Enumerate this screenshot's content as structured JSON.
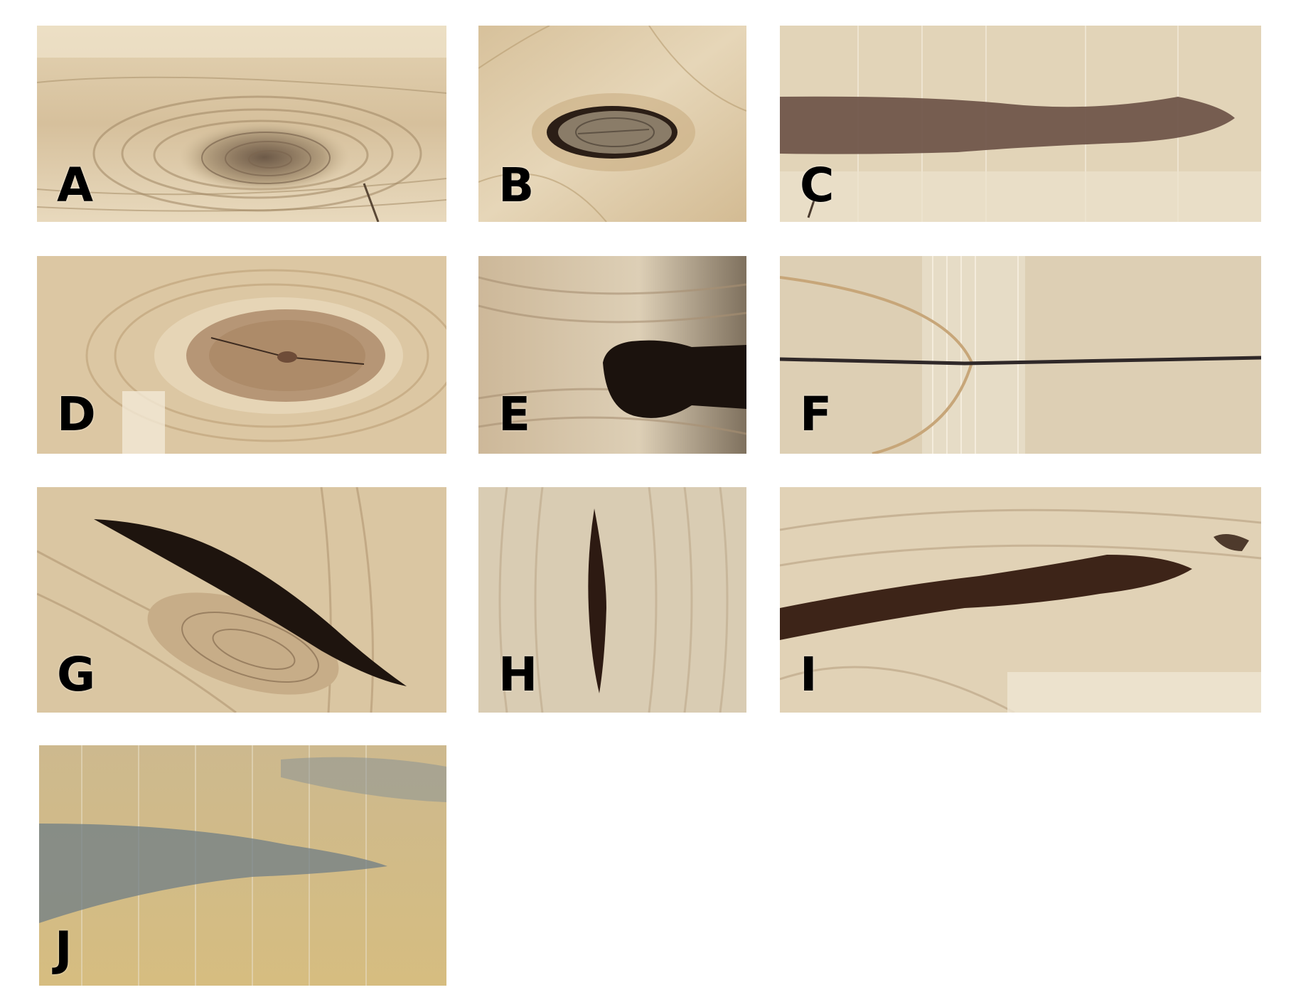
{
  "panels": {
    "a": {
      "label": "A",
      "feature": "sound-knot-image"
    },
    "b": {
      "label": "B",
      "feature": "encased-knot-image"
    },
    "c": {
      "label": "C",
      "feature": "resin-streak-image"
    },
    "d": {
      "label": "D",
      "feature": "sound-knot-with-crack-image"
    },
    "e": {
      "label": "E",
      "feature": "dark-knot-image"
    },
    "f": {
      "label": "F",
      "feature": "thin-line-image"
    },
    "g": {
      "label": "G",
      "feature": "bark-pocket-knot-image"
    },
    "h": {
      "label": "H",
      "feature": "resin-pocket-image"
    },
    "i": {
      "label": "I",
      "feature": "dark-streak-image"
    },
    "j": {
      "label": "J",
      "feature": "blue-stain-image"
    }
  },
  "colors": {
    "wood_light": "#e9d9ba",
    "wood_mid": "#cdb38c",
    "wood_dark": "#9b7d58",
    "defect_dark": "#2a1a12",
    "streak_brown": "#6e5448",
    "stain_blue": "#6f7e86",
    "label": "#000000"
  }
}
